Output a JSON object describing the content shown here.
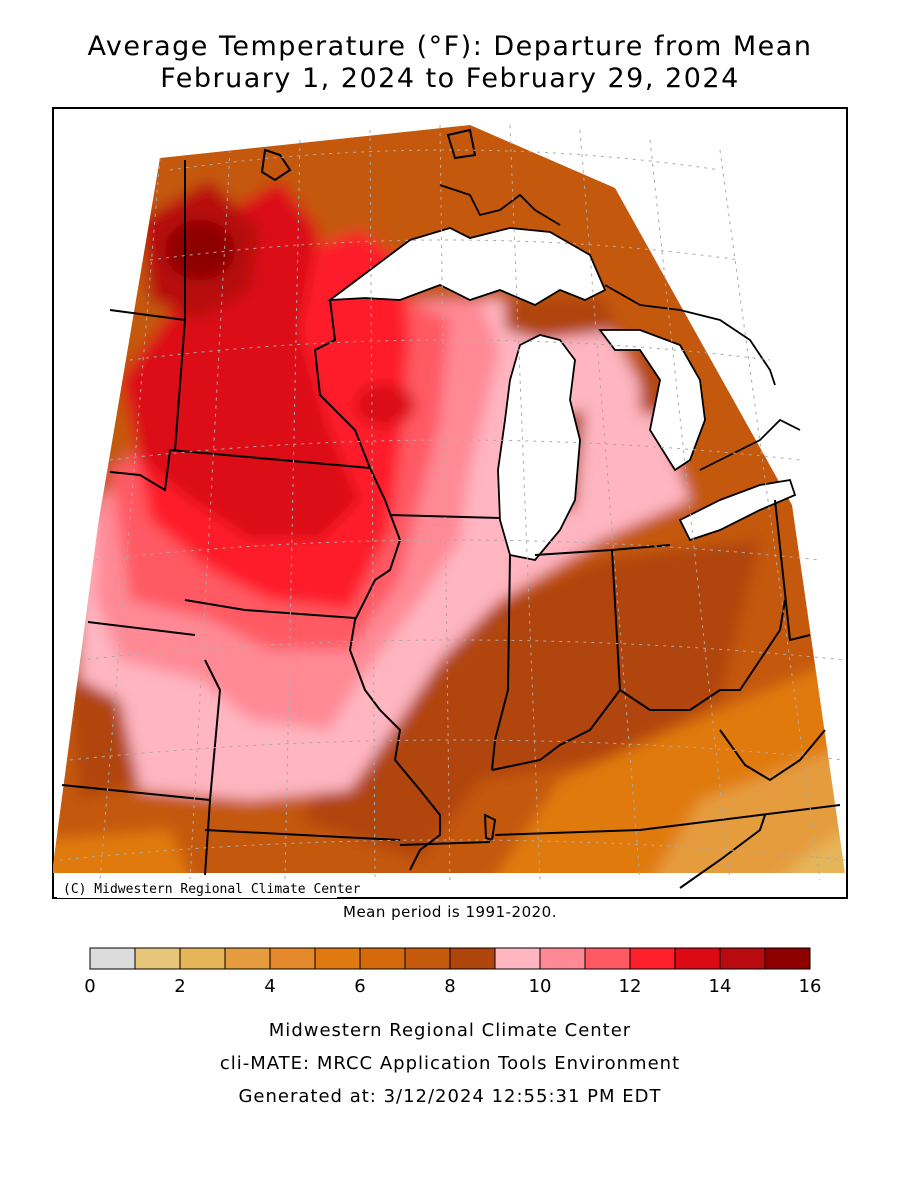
{
  "title": {
    "line1": "Average Temperature (°F): Departure from Mean",
    "line2": "February 1, 2024 to February 29, 2024"
  },
  "map": {
    "credit": "(C) Midwestern Regional Climate Center",
    "mean_period": "Mean period is 1991-2020."
  },
  "legend": {
    "unit": "°F",
    "colors": [
      "#dcdcdc",
      "#e8c679",
      "#e6b55a",
      "#e59c3e",
      "#e3892a",
      "#e07a10",
      "#d56a0c",
      "#c55a0c",
      "#b0450c",
      "#ffb6c1",
      "#ff8a96",
      "#ff5a64",
      "#ff1f2a",
      "#dc0a14",
      "#b80a0f",
      "#8e0000"
    ],
    "tick_labels": [
      "0",
      "2",
      "4",
      "6",
      "8",
      "10",
      "12",
      "14",
      "16"
    ]
  },
  "footer": {
    "line1": "Midwestern Regional Climate Center",
    "line2": "cli-MATE: MRCC Application Tools Environment",
    "line3": "Generated at: 3/12/2024 12:55:31 PM EDT"
  }
}
